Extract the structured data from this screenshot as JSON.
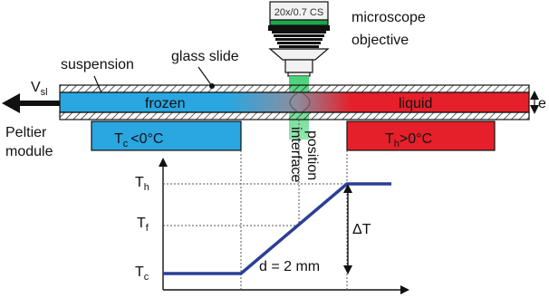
{
  "colors": {
    "frozen": "#2aa6e0",
    "liquid": "#e5202a",
    "beam": "#3fcf70",
    "curve": "#2b3f95",
    "glass": "#ffffff",
    "outline": "#111111"
  },
  "labels": {
    "suspension": "suspension",
    "glass_slide": "glass slide",
    "microscope_line1": "microscope",
    "microscope_line2": "objective",
    "objective_marking": "20x/0.7 CS",
    "velocity_main": "V",
    "velocity_sub": "sl",
    "frozen": "frozen",
    "liquid": "liquid",
    "thickness": "e",
    "peltier_line1": "Peltier",
    "peltier_line2": "module",
    "cold_T_main": "T",
    "cold_T_sub": "c",
    "cold_T_rest": "<0°C",
    "hot_T_main": "T",
    "hot_T_sub": "h",
    "hot_T_rest": ">0°C",
    "interface_line1": "interface",
    "interface_line2": "position",
    "delta_T": "ΔT",
    "distance": "d = 2 mm"
  },
  "axis_ticks": [
    {
      "main": "T",
      "sub": "h"
    },
    {
      "main": "T",
      "sub": "f"
    },
    {
      "main": "T",
      "sub": "c"
    }
  ]
}
